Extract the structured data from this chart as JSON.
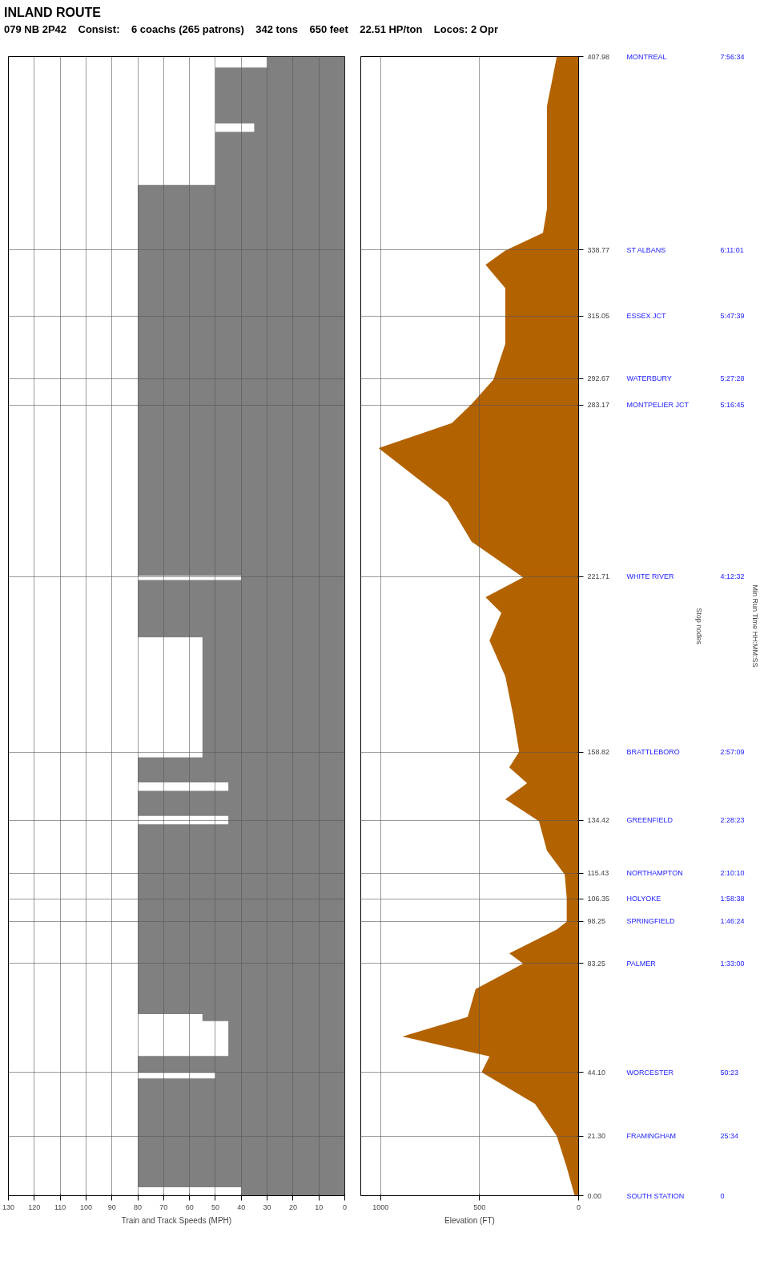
{
  "chart_data": [
    {
      "type": "area",
      "title": "INLAND ROUTE",
      "subtitle": "079 NB 2P42    Consist:    6 coachs (265 patrons)    342 tons    650 feet    22.51 HP/ton    Locos: 2 Opr",
      "orientation": "horizontal",
      "xlabel": "Train and Track Speeds (MPH)",
      "x": [
        0,
        3,
        3,
        42,
        42,
        44,
        44,
        50,
        50,
        62.5,
        62.5,
        65,
        65,
        133,
        133,
        136,
        136,
        145,
        145,
        148,
        148,
        157,
        157,
        200,
        200,
        220.5,
        220.5,
        222,
        222,
        362,
        362,
        381,
        381,
        384,
        384,
        404,
        404,
        407.98
      ],
      "series": [
        {
          "color": "#808080",
          "values": [
            40,
            40,
            80,
            80,
            50,
            50,
            80,
            80,
            45,
            45,
            55,
            55,
            80,
            80,
            45,
            45,
            80,
            80,
            45,
            45,
            80,
            80,
            55,
            55,
            80,
            80,
            40,
            40,
            80,
            80,
            50,
            50,
            35,
            35,
            50,
            50,
            30,
            30
          ]
        }
      ],
      "xlim": [
        130,
        0
      ],
      "xticks": [
        0,
        10,
        20,
        30,
        40,
        50,
        60,
        70,
        80,
        90,
        100,
        110,
        120,
        130
      ],
      "ylim": [
        0,
        407.98
      ],
      "yticks": [
        {
          "value": 0,
          "label": null
        },
        {
          "value": 21.3,
          "label": null
        },
        {
          "value": 44.1,
          "label": null
        },
        {
          "value": 83.25,
          "label": null
        },
        {
          "value": 98.25,
          "label": null
        },
        {
          "value": 106.35,
          "label": null
        },
        {
          "value": 115.43,
          "label": null
        },
        {
          "value": 134.42,
          "label": null
        },
        {
          "value": 158.82,
          "label": null
        },
        {
          "value": 221.71,
          "label": null
        },
        {
          "value": 283.17,
          "label": null
        },
        {
          "value": 292.67,
          "label": null
        },
        {
          "value": 315.05,
          "label": null
        },
        {
          "value": 338.77,
          "label": null
        },
        {
          "value": 407.98,
          "label": null
        }
      ],
      "tick_labels": "x",
      "grid": true
    },
    {
      "type": "area",
      "orientation": "horizontal",
      "xlabel": "Elevation (FT)",
      "x": [
        0,
        10.2,
        21.3,
        32.9,
        44.2,
        49.9,
        57,
        64,
        74,
        79.7,
        83.1,
        86.8,
        95.3,
        98.1,
        106.6,
        115,
        123.6,
        134.1,
        142,
        147.7,
        153.4,
        159,
        171.8,
        186,
        198.8,
        208.7,
        214.3,
        221.4,
        234.2,
        248.4,
        267.7,
        276.7,
        283.5,
        292.3,
        305.1,
        315,
        325,
        333.4,
        338.5,
        344.8,
        353.3,
        390.1,
        407.98
      ],
      "series": [
        {
          "color": "#b36200",
          "values": [
            20,
            60,
            110,
            220,
            490,
            450,
            890,
            560,
            520,
            370,
            280,
            350,
            110,
            60,
            60,
            70,
            160,
            200,
            370,
            260,
            350,
            300,
            330,
            370,
            450,
            390,
            470,
            280,
            540,
            660,
            1010,
            640,
            540,
            430,
            370,
            370,
            370,
            470,
            370,
            180,
            160,
            160,
            110
          ]
        }
      ],
      "xlim": [
        1100,
        0
      ],
      "xticks": [
        0,
        500,
        1000
      ],
      "ylim": [
        0,
        407.98
      ],
      "yticks": [
        {
          "value": 0,
          "label": "0.00"
        },
        {
          "value": 21.3,
          "label": "21.30"
        },
        {
          "value": 44.1,
          "label": "44.10"
        },
        {
          "value": 83.25,
          "label": "83.25"
        },
        {
          "value": 98.25,
          "label": "98.25"
        },
        {
          "value": 106.35,
          "label": "106.35"
        },
        {
          "value": 115.43,
          "label": "115.43"
        },
        {
          "value": 134.42,
          "label": "134.42"
        },
        {
          "value": 158.82,
          "label": "158.82"
        },
        {
          "value": 221.71,
          "label": "221.71"
        },
        {
          "value": 283.17,
          "label": "283.17"
        },
        {
          "value": 292.67,
          "label": "292.67"
        },
        {
          "value": 315.05,
          "label": "315.05"
        },
        {
          "value": 338.77,
          "label": "338.77"
        },
        {
          "value": 407.98,
          "label": "407.98"
        }
      ],
      "grid": true,
      "annotations": [
        "Stop nodes",
        "Min Run Time HH:MM:SS",
        "SOUTH STATION",
        "0",
        "FRAMINGHAM",
        "25:34",
        "WORCESTER",
        "50:23",
        "PALMER",
        "1:33:00",
        "SPRINGFIELD",
        "1:46:24",
        "HOLYOKE",
        "1:58:38",
        "NORTHAMPTON",
        "2:10:10",
        "GREENFIELD",
        "2:28:23",
        "BRATTLEBORO",
        "2:57:09",
        "WHITE RIVER",
        "4:12:32",
        "MONTPELIER JCT",
        "5:16:45",
        "WATERBURY",
        "5:27:28",
        "ESSEX JCT",
        "5:47:39",
        "ST ALBANS",
        "6:11:01",
        "MONTREAL",
        "7:56:34"
      ]
    }
  ]
}
